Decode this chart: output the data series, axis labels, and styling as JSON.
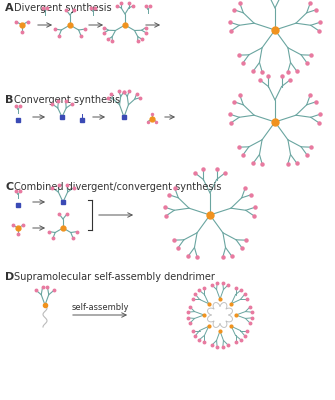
{
  "background_color": "#ffffff",
  "teal": "#6aa5a0",
  "pink": "#e87aa0",
  "orange": "#f0921e",
  "blue": "#3a4ab5",
  "dark": "#333333",
  "gray": "#888888",
  "lightgray": "#bbbbbb",
  "labels": [
    "A",
    "B",
    "C",
    "D"
  ],
  "titles": [
    "Divergent synthesis",
    "Convergent synthesis",
    "Combined divergent/convergent synthesis",
    "Supramolecular self-assembly dendrimer"
  ],
  "self_assembly_text": "self-assembly",
  "fig_w": 3.35,
  "fig_h": 4.0,
  "dpi": 100
}
